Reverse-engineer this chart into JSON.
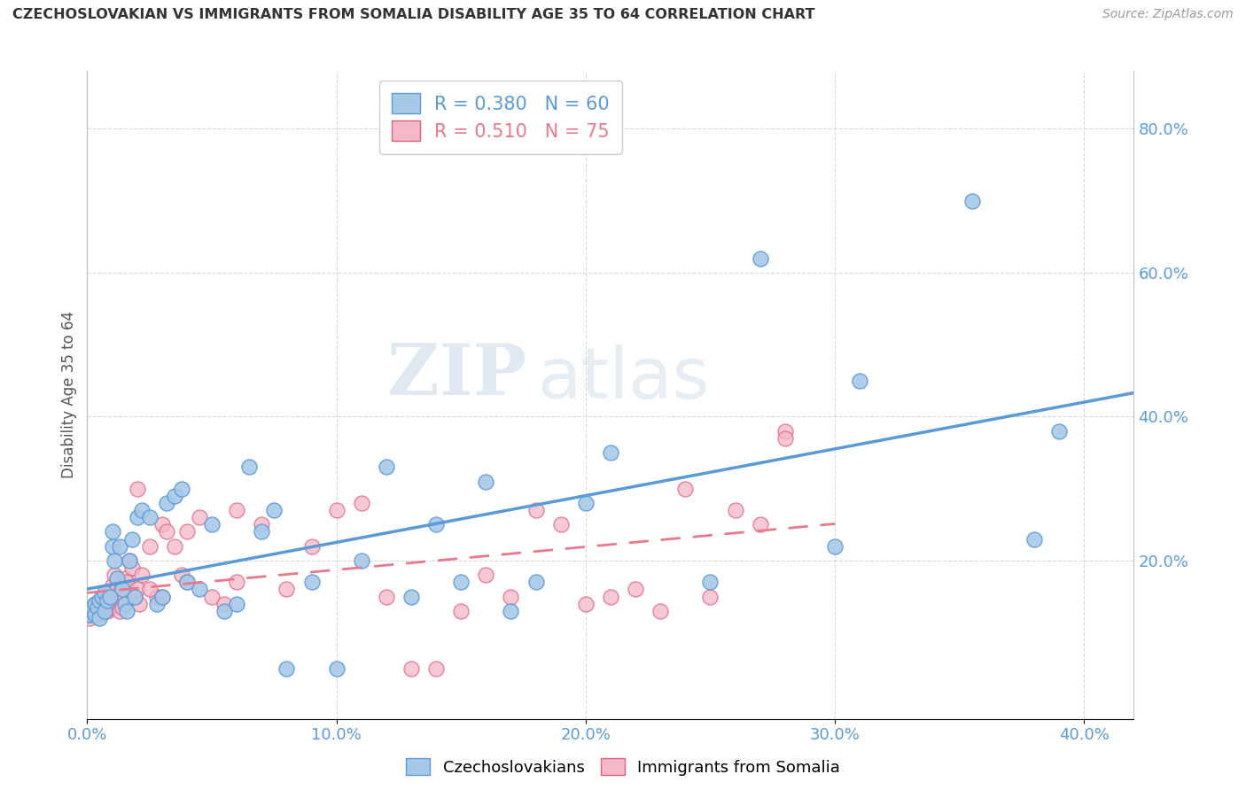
{
  "title": "CZECHOSLOVAKIAN VS IMMIGRANTS FROM SOMALIA DISABILITY AGE 35 TO 64 CORRELATION CHART",
  "source": "Source: ZipAtlas.com",
  "ylabel": "Disability Age 35 to 64",
  "xlim": [
    0.0,
    0.42
  ],
  "ylim": [
    -0.02,
    0.88
  ],
  "xtick_vals": [
    0.0,
    0.1,
    0.2,
    0.3,
    0.4
  ],
  "xtick_labels": [
    "0.0%",
    "10.0%",
    "20.0%",
    "30.0%",
    "40.0%"
  ],
  "ytick_vals": [
    0.2,
    0.4,
    0.6,
    0.8
  ],
  "ytick_labels": [
    "20.0%",
    "40.0%",
    "60.0%",
    "80.0%"
  ],
  "blue_color": "#a8c8e8",
  "pink_color": "#f4b8c8",
  "blue_edge_color": "#5b9bd5",
  "pink_edge_color": "#e06080",
  "blue_line_color": "#5b9bd5",
  "pink_line_color": "#e8788a",
  "blue_R": 0.38,
  "blue_N": 60,
  "pink_R": 0.51,
  "pink_N": 75,
  "watermark_zip": "ZIP",
  "watermark_atlas": "atlas",
  "legend_label_blue": "Czechoslovakians",
  "legend_label_pink": "Immigrants from Somalia",
  "blue_scatter_x": [
    0.001,
    0.002,
    0.002,
    0.003,
    0.003,
    0.004,
    0.005,
    0.005,
    0.006,
    0.007,
    0.007,
    0.008,
    0.009,
    0.01,
    0.01,
    0.011,
    0.012,
    0.013,
    0.014,
    0.015,
    0.016,
    0.017,
    0.018,
    0.019,
    0.02,
    0.022,
    0.025,
    0.028,
    0.03,
    0.032,
    0.035,
    0.038,
    0.04,
    0.045,
    0.05,
    0.055,
    0.06,
    0.065,
    0.07,
    0.075,
    0.08,
    0.09,
    0.1,
    0.11,
    0.12,
    0.13,
    0.14,
    0.15,
    0.16,
    0.17,
    0.18,
    0.2,
    0.21,
    0.25,
    0.27,
    0.3,
    0.31,
    0.355,
    0.38,
    0.39
  ],
  "blue_scatter_y": [
    0.125,
    0.13,
    0.135,
    0.14,
    0.125,
    0.135,
    0.145,
    0.12,
    0.15,
    0.13,
    0.155,
    0.145,
    0.15,
    0.22,
    0.24,
    0.2,
    0.175,
    0.22,
    0.16,
    0.14,
    0.13,
    0.2,
    0.23,
    0.15,
    0.26,
    0.27,
    0.26,
    0.14,
    0.15,
    0.28,
    0.29,
    0.3,
    0.17,
    0.16,
    0.25,
    0.13,
    0.14,
    0.33,
    0.24,
    0.27,
    0.05,
    0.17,
    0.05,
    0.2,
    0.33,
    0.15,
    0.25,
    0.17,
    0.31,
    0.13,
    0.17,
    0.28,
    0.35,
    0.17,
    0.62,
    0.22,
    0.45,
    0.7,
    0.23,
    0.38
  ],
  "pink_scatter_x": [
    0.001,
    0.001,
    0.002,
    0.002,
    0.003,
    0.003,
    0.004,
    0.004,
    0.005,
    0.005,
    0.006,
    0.006,
    0.007,
    0.007,
    0.008,
    0.008,
    0.009,
    0.009,
    0.01,
    0.01,
    0.011,
    0.011,
    0.012,
    0.012,
    0.013,
    0.013,
    0.014,
    0.015,
    0.015,
    0.016,
    0.017,
    0.018,
    0.019,
    0.02,
    0.021,
    0.022,
    0.025,
    0.028,
    0.03,
    0.032,
    0.035,
    0.038,
    0.04,
    0.045,
    0.05,
    0.055,
    0.06,
    0.07,
    0.08,
    0.09,
    0.1,
    0.11,
    0.12,
    0.13,
    0.14,
    0.15,
    0.16,
    0.17,
    0.18,
    0.19,
    0.2,
    0.21,
    0.22,
    0.23,
    0.24,
    0.25,
    0.26,
    0.27,
    0.28,
    0.02,
    0.025,
    0.03,
    0.04,
    0.06,
    0.28
  ],
  "pink_scatter_y": [
    0.12,
    0.125,
    0.13,
    0.135,
    0.14,
    0.125,
    0.13,
    0.135,
    0.14,
    0.125,
    0.15,
    0.13,
    0.155,
    0.135,
    0.14,
    0.13,
    0.145,
    0.135,
    0.165,
    0.14,
    0.18,
    0.145,
    0.14,
    0.16,
    0.13,
    0.155,
    0.135,
    0.15,
    0.175,
    0.17,
    0.2,
    0.19,
    0.15,
    0.16,
    0.14,
    0.18,
    0.22,
    0.15,
    0.25,
    0.24,
    0.22,
    0.18,
    0.24,
    0.26,
    0.15,
    0.14,
    0.17,
    0.25,
    0.16,
    0.22,
    0.27,
    0.28,
    0.15,
    0.05,
    0.05,
    0.13,
    0.18,
    0.15,
    0.27,
    0.25,
    0.14,
    0.15,
    0.16,
    0.13,
    0.3,
    0.15,
    0.27,
    0.25,
    0.38,
    0.3,
    0.16,
    0.15,
    0.17,
    0.27,
    0.37
  ]
}
